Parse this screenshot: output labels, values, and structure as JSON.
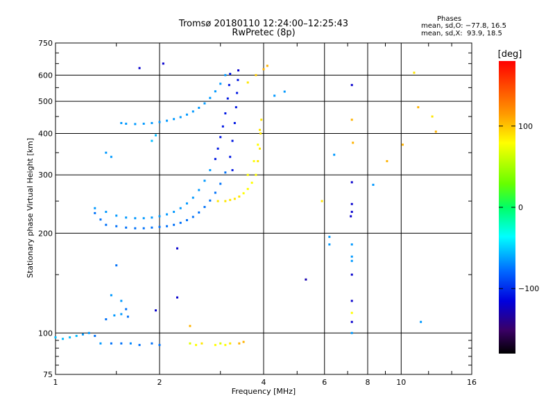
{
  "header": {
    "title_line1": "Tromsø 20180110 12:24:00–12:25:43",
    "title_line2": "RwPretec (8p)",
    "phases_title": "Phases",
    "stat_o": "mean, sd,O: −77.8, 16.5",
    "stat_x": "mean, sd,X:  93.9, 18.5"
  },
  "colorbar": {
    "unit_label": "[deg]",
    "ticks": [
      {
        "value": 100,
        "label": "100"
      },
      {
        "value": 0,
        "label": "0"
      },
      {
        "value": -100,
        "label": "−100"
      }
    ],
    "range": [
      -180,
      180
    ]
  },
  "chart_data": {
    "type": "scatter",
    "title": "Tromsø 20180110 12:24:00–12:25:43",
    "subtitle": "RwPretec (8p)",
    "xlabel": "Frequency [MHz]",
    "ylabel": "Stationary phase Virtual Height [km]",
    "xscale": "log",
    "yscale": "log",
    "xlim": [
      1,
      16
    ],
    "ylim": [
      75,
      750
    ],
    "xticks": [
      1,
      2,
      4,
      6,
      8,
      10,
      16
    ],
    "xtick_labels": [
      "1",
      "2",
      "4",
      "6",
      "8",
      "10",
      "16"
    ],
    "yticks": [
      75,
      100,
      200,
      300,
      400,
      500,
      600,
      750
    ],
    "ytick_labels": [
      "75",
      "100",
      "200",
      "300",
      "400",
      "500",
      "600",
      "750"
    ],
    "grid": true,
    "color_key": "phase [deg]",
    "series": [
      {
        "points": [
          [
            1.0,
            97,
            -60
          ],
          [
            1.05,
            96,
            -60
          ],
          [
            1.1,
            97,
            -60
          ],
          [
            1.15,
            98,
            -60
          ],
          [
            1.2,
            99,
            -70
          ],
          [
            1.25,
            100,
            -70
          ],
          [
            1.3,
            98,
            -80
          ],
          [
            1.35,
            93,
            -70
          ],
          [
            1.45,
            93,
            -80
          ],
          [
            1.55,
            93,
            -80
          ],
          [
            1.65,
            93,
            -75
          ],
          [
            1.75,
            92,
            -80
          ],
          [
            1.9,
            93,
            -80
          ],
          [
            2.0,
            92,
            -80
          ],
          [
            1.4,
            110,
            -80
          ],
          [
            1.48,
            113,
            -70
          ],
          [
            1.55,
            114,
            -70
          ],
          [
            1.62,
            112,
            -80
          ],
          [
            1.55,
            125,
            -70
          ],
          [
            1.6,
            118,
            -80
          ]
        ]
      },
      {
        "points": [
          [
            1.3,
            230,
            -80
          ],
          [
            1.35,
            220,
            -80
          ],
          [
            1.4,
            212,
            -80
          ],
          [
            1.5,
            210,
            -80
          ],
          [
            1.6,
            208,
            -80
          ],
          [
            1.7,
            207,
            -80
          ],
          [
            1.8,
            207,
            -80
          ],
          [
            1.9,
            208,
            -80
          ],
          [
            2.0,
            209,
            -80
          ],
          [
            2.1,
            210,
            -80
          ],
          [
            2.2,
            212,
            -80
          ],
          [
            2.3,
            215,
            -80
          ],
          [
            2.4,
            219,
            -80
          ],
          [
            2.5,
            224,
            -80
          ],
          [
            2.6,
            231,
            -80
          ],
          [
            2.7,
            240,
            -80
          ],
          [
            2.8,
            251,
            -80
          ],
          [
            2.9,
            265,
            -80
          ],
          [
            3.0,
            282,
            -80
          ],
          [
            3.1,
            305,
            -80
          ],
          [
            3.2,
            340,
            -100
          ],
          [
            3.25,
            380,
            -100
          ],
          [
            3.3,
            430,
            -100
          ],
          [
            3.33,
            480,
            -100
          ],
          [
            3.35,
            530,
            -100
          ],
          [
            3.37,
            580,
            -100
          ],
          [
            3.38,
            620,
            -110
          ]
        ]
      },
      {
        "points": [
          [
            1.3,
            238,
            -70
          ],
          [
            1.4,
            232,
            -70
          ],
          [
            1.5,
            226,
            -70
          ],
          [
            1.6,
            223,
            -70
          ],
          [
            1.7,
            222,
            -70
          ],
          [
            1.8,
            222,
            -70
          ],
          [
            1.9,
            223,
            -70
          ],
          [
            2.0,
            225,
            -70
          ],
          [
            2.1,
            228,
            -70
          ],
          [
            2.2,
            232,
            -70
          ],
          [
            2.3,
            238,
            -70
          ],
          [
            2.4,
            246,
            -70
          ],
          [
            2.5,
            256,
            -70
          ],
          [
            2.6,
            270,
            -70
          ],
          [
            2.7,
            288,
            -70
          ],
          [
            2.8,
            310,
            -70
          ],
          [
            2.9,
            335,
            -100
          ],
          [
            2.95,
            360,
            -100
          ],
          [
            3.0,
            390,
            -100
          ],
          [
            3.05,
            420,
            -100
          ],
          [
            3.1,
            460,
            -100
          ],
          [
            3.15,
            510,
            -100
          ],
          [
            3.18,
            560,
            -100
          ],
          [
            3.2,
            605,
            -100
          ]
        ]
      },
      {
        "points": [
          [
            1.55,
            430,
            -70
          ],
          [
            1.6,
            428,
            -70
          ],
          [
            1.7,
            427,
            -70
          ],
          [
            1.8,
            428,
            -70
          ],
          [
            1.9,
            430,
            -70
          ],
          [
            2.0,
            433,
            -70
          ],
          [
            2.1,
            437,
            -70
          ],
          [
            2.2,
            442,
            -70
          ],
          [
            2.3,
            448,
            -70
          ],
          [
            2.4,
            456,
            -70
          ],
          [
            2.5,
            466,
            -70
          ],
          [
            2.6,
            478,
            -70
          ],
          [
            2.7,
            493,
            -70
          ],
          [
            2.8,
            512,
            -70
          ],
          [
            2.9,
            536,
            -70
          ],
          [
            3.0,
            565,
            -70
          ],
          [
            3.1,
            600,
            -70
          ]
        ]
      },
      {
        "points": [
          [
            2.45,
            93,
            90
          ],
          [
            2.55,
            92,
            100
          ],
          [
            2.65,
            93,
            110
          ],
          [
            2.9,
            92,
            100
          ],
          [
            3.0,
            93,
            90
          ],
          [
            3.1,
            92,
            100
          ],
          [
            3.2,
            93,
            110
          ],
          [
            3.4,
            93,
            130
          ],
          [
            3.5,
            94,
            130
          ]
        ]
      },
      {
        "points": [
          [
            2.95,
            250,
            110
          ],
          [
            3.1,
            250,
            110
          ],
          [
            3.2,
            252,
            110
          ],
          [
            3.3,
            254,
            110
          ],
          [
            3.4,
            258,
            110
          ],
          [
            3.5,
            264,
            100
          ],
          [
            3.6,
            272,
            100
          ],
          [
            3.7,
            284,
            100
          ],
          [
            3.8,
            300,
            100
          ],
          [
            3.85,
            330,
            110
          ],
          [
            3.9,
            360,
            110
          ],
          [
            3.92,
            400,
            110
          ],
          [
            3.94,
            440,
            110
          ],
          [
            3.6,
            300,
            100
          ],
          [
            3.75,
            330,
            100
          ],
          [
            3.85,
            370,
            100
          ],
          [
            3.9,
            410,
            110
          ]
        ]
      },
      {
        "points": [
          [
            3.6,
            570,
            110
          ],
          [
            3.8,
            600,
            120
          ],
          [
            4.0,
            625,
            130
          ],
          [
            4.1,
            640,
            130
          ],
          [
            1.75,
            630,
            -110
          ],
          [
            2.05,
            650,
            -110
          ],
          [
            1.4,
            350,
            -70
          ],
          [
            1.45,
            340,
            -70
          ],
          [
            1.9,
            380,
            -60
          ],
          [
            1.95,
            395,
            -60
          ],
          [
            3.25,
            310,
            -100
          ],
          [
            2.25,
            180,
            -110
          ],
          [
            2.25,
            128,
            -110
          ],
          [
            2.45,
            105,
            130
          ],
          [
            1.95,
            117,
            -110
          ],
          [
            1.5,
            160,
            -80
          ],
          [
            1.45,
            130,
            -70
          ],
          [
            4.3,
            520,
            -70
          ],
          [
            4.6,
            535,
            -70
          ],
          [
            5.3,
            145,
            -120
          ],
          [
            5.9,
            250,
            110
          ],
          [
            6.2,
            195,
            -70
          ],
          [
            6.4,
            345,
            -70
          ],
          [
            6.2,
            185,
            -70
          ],
          [
            7.2,
            560,
            -110
          ],
          [
            7.2,
            440,
            130
          ],
          [
            7.25,
            375,
            130
          ],
          [
            7.2,
            285,
            -110
          ],
          [
            7.2,
            245,
            -110
          ],
          [
            7.2,
            232,
            -110
          ],
          [
            7.15,
            225,
            -110
          ],
          [
            7.2,
            185,
            -70
          ],
          [
            7.2,
            170,
            -70
          ],
          [
            7.2,
            165,
            -70
          ],
          [
            7.2,
            150,
            -110
          ],
          [
            7.2,
            125,
            -110
          ],
          [
            7.2,
            115,
            100
          ],
          [
            7.2,
            108,
            -110
          ],
          [
            7.2,
            100,
            -70
          ],
          [
            8.3,
            280,
            -70
          ],
          [
            9.1,
            330,
            130
          ],
          [
            10.1,
            370,
            130
          ],
          [
            10.9,
            610,
            110
          ],
          [
            11.2,
            480,
            130
          ],
          [
            12.3,
            450,
            110
          ],
          [
            12.6,
            405,
            130
          ],
          [
            11.4,
            108,
            -70
          ]
        ]
      }
    ]
  }
}
